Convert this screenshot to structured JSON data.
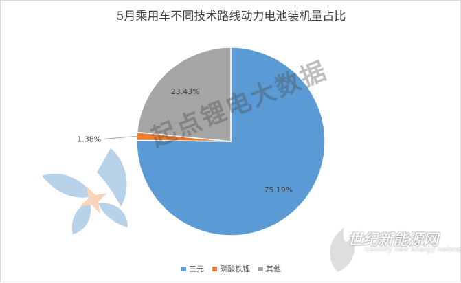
{
  "chart_data": {
    "type": "pie",
    "title": "5月乘用车不同技术路线动力电池装机量占比",
    "categories": [
      "三元",
      "磷酸铁锂",
      "其他"
    ],
    "values": [
      75.19,
      1.38,
      23.43
    ],
    "labels": [
      "75.19%",
      "1.38%",
      "23.43%"
    ],
    "colors": [
      "#5b9bd5",
      "#ed7d31",
      "#a5a5a5"
    ],
    "legend_position": "bottom"
  },
  "watermark": {
    "text": "起点锂电大数据",
    "logo_text": "世纪新能源网",
    "logo_sub": "Century new energy network"
  }
}
